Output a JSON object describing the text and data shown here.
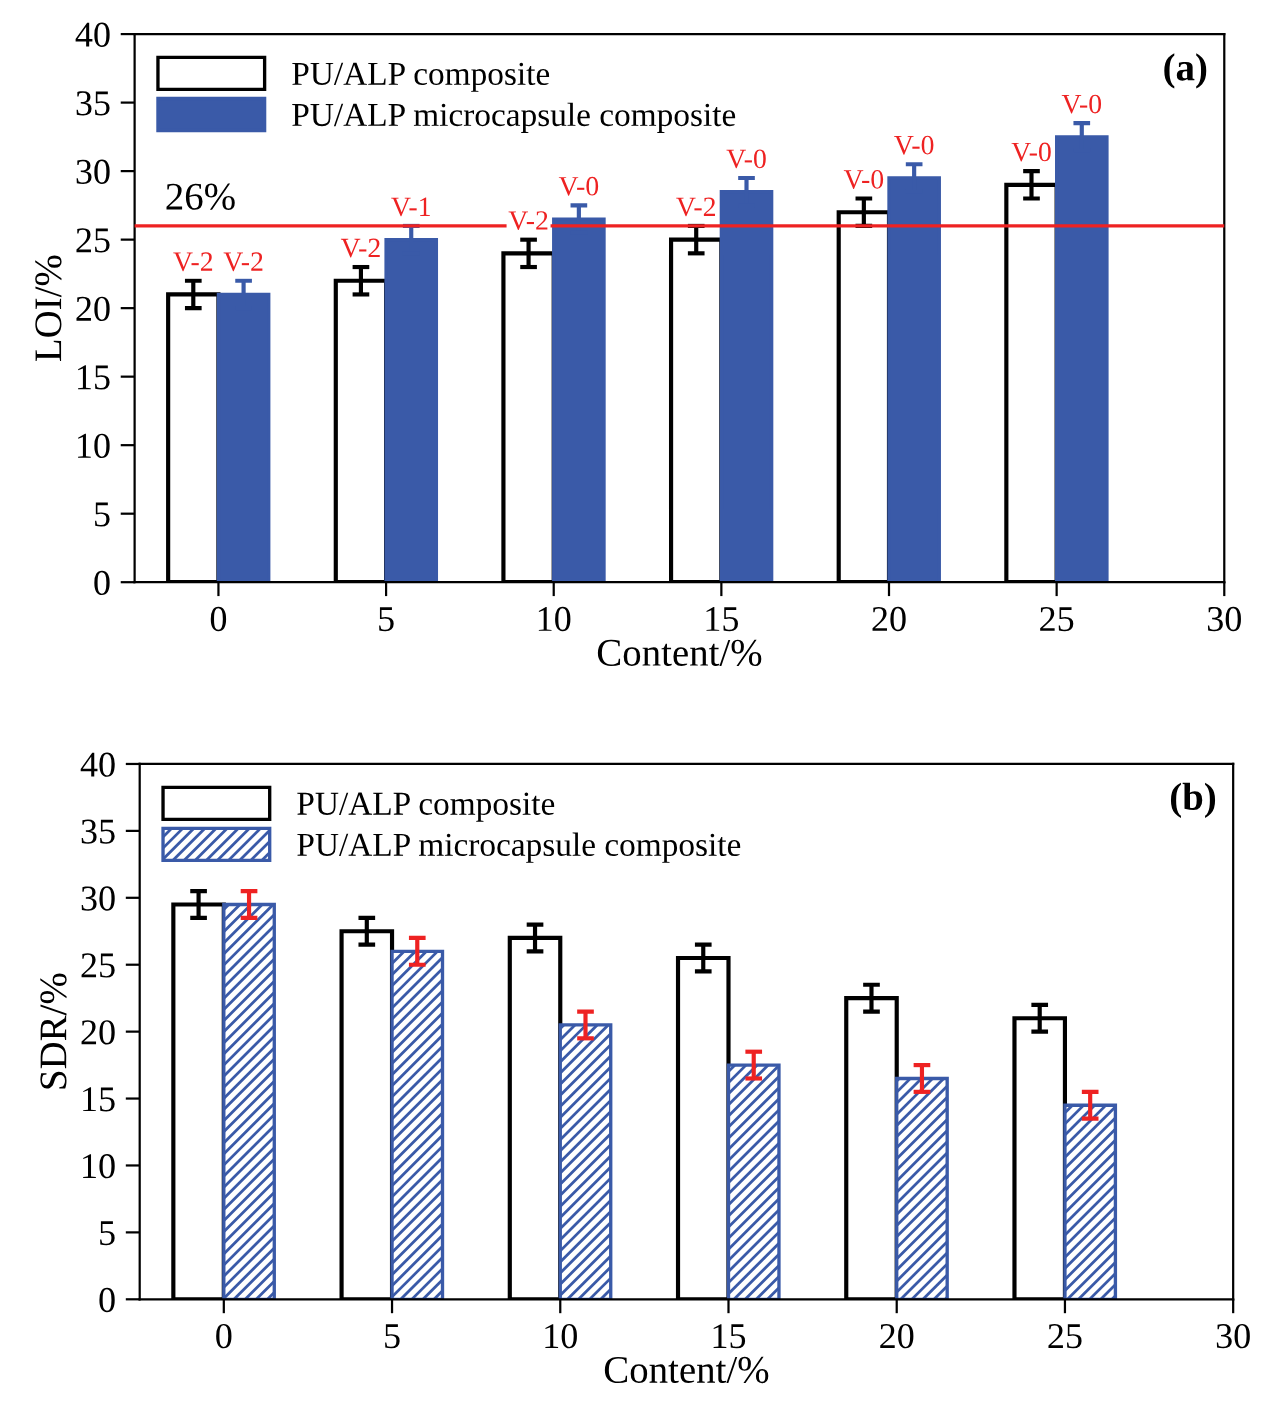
{
  "chart_data": [
    {
      "type": "bar",
      "xlabel": "Content/%",
      "ylabel": "LOI/%",
      "x": [
        0,
        5,
        10,
        15,
        20,
        25
      ],
      "xlim": [
        -2.5,
        30
      ],
      "xticks": [
        0,
        5,
        10,
        15,
        20,
        25,
        30
      ],
      "ylim": [
        0,
        40
      ],
      "yticks": [
        0,
        5,
        10,
        15,
        20,
        25,
        30,
        35,
        40
      ],
      "grid": false,
      "legend": "top left",
      "series": [
        {
          "name": "PU/ALP composite",
          "color": "#ffffff",
          "values": [
            21,
            22,
            24,
            25,
            27,
            29
          ],
          "errors": [
            1,
            1,
            1,
            1,
            1,
            1
          ],
          "value_labels": [
            "V-2",
            "V-2",
            "V-2",
            "V-2",
            "V-0",
            "V-0"
          ]
        },
        {
          "name": "PU/ALP microcapsule composite",
          "color": "#3a5aa8",
          "values": [
            21,
            25,
            26.5,
            28.5,
            29.5,
            32.5
          ],
          "errors": [
            1,
            1,
            1,
            1,
            1,
            1
          ],
          "value_labels": [
            "V-2",
            "V-1",
            "V-0",
            "V-0",
            "V-0",
            "V-0"
          ]
        }
      ],
      "ref_lines": [
        {
          "axis": "y",
          "value": 26,
          "label": "26%",
          "color": "#ee2222"
        }
      ],
      "annotations": [
        "(a)"
      ]
    },
    {
      "type": "bar",
      "xlabel": "Content/%",
      "ylabel": "SDR/%",
      "x": [
        0,
        5,
        10,
        15,
        20,
        25
      ],
      "xlim": [
        -2.5,
        30
      ],
      "xticks": [
        0,
        5,
        10,
        15,
        20,
        25,
        30
      ],
      "ylim": [
        0,
        40
      ],
      "yticks": [
        0,
        5,
        10,
        15,
        20,
        25,
        30,
        35,
        40
      ],
      "grid": false,
      "legend": "top left",
      "series": [
        {
          "name": "PU/ALP composite",
          "color": "#ffffff",
          "values": [
            29.5,
            27.5,
            27,
            25.5,
            22.5,
            21
          ],
          "errors": [
            1,
            1,
            1,
            1,
            1,
            1
          ]
        },
        {
          "name": "PU/ALP microcapsule composite",
          "color": "#3a5aa8",
          "values": [
            29.5,
            26,
            20.5,
            17.5,
            16.5,
            14.5
          ],
          "errors": [
            1,
            1,
            1,
            1,
            1,
            1
          ]
        }
      ],
      "annotations": [
        "(b)"
      ]
    }
  ]
}
